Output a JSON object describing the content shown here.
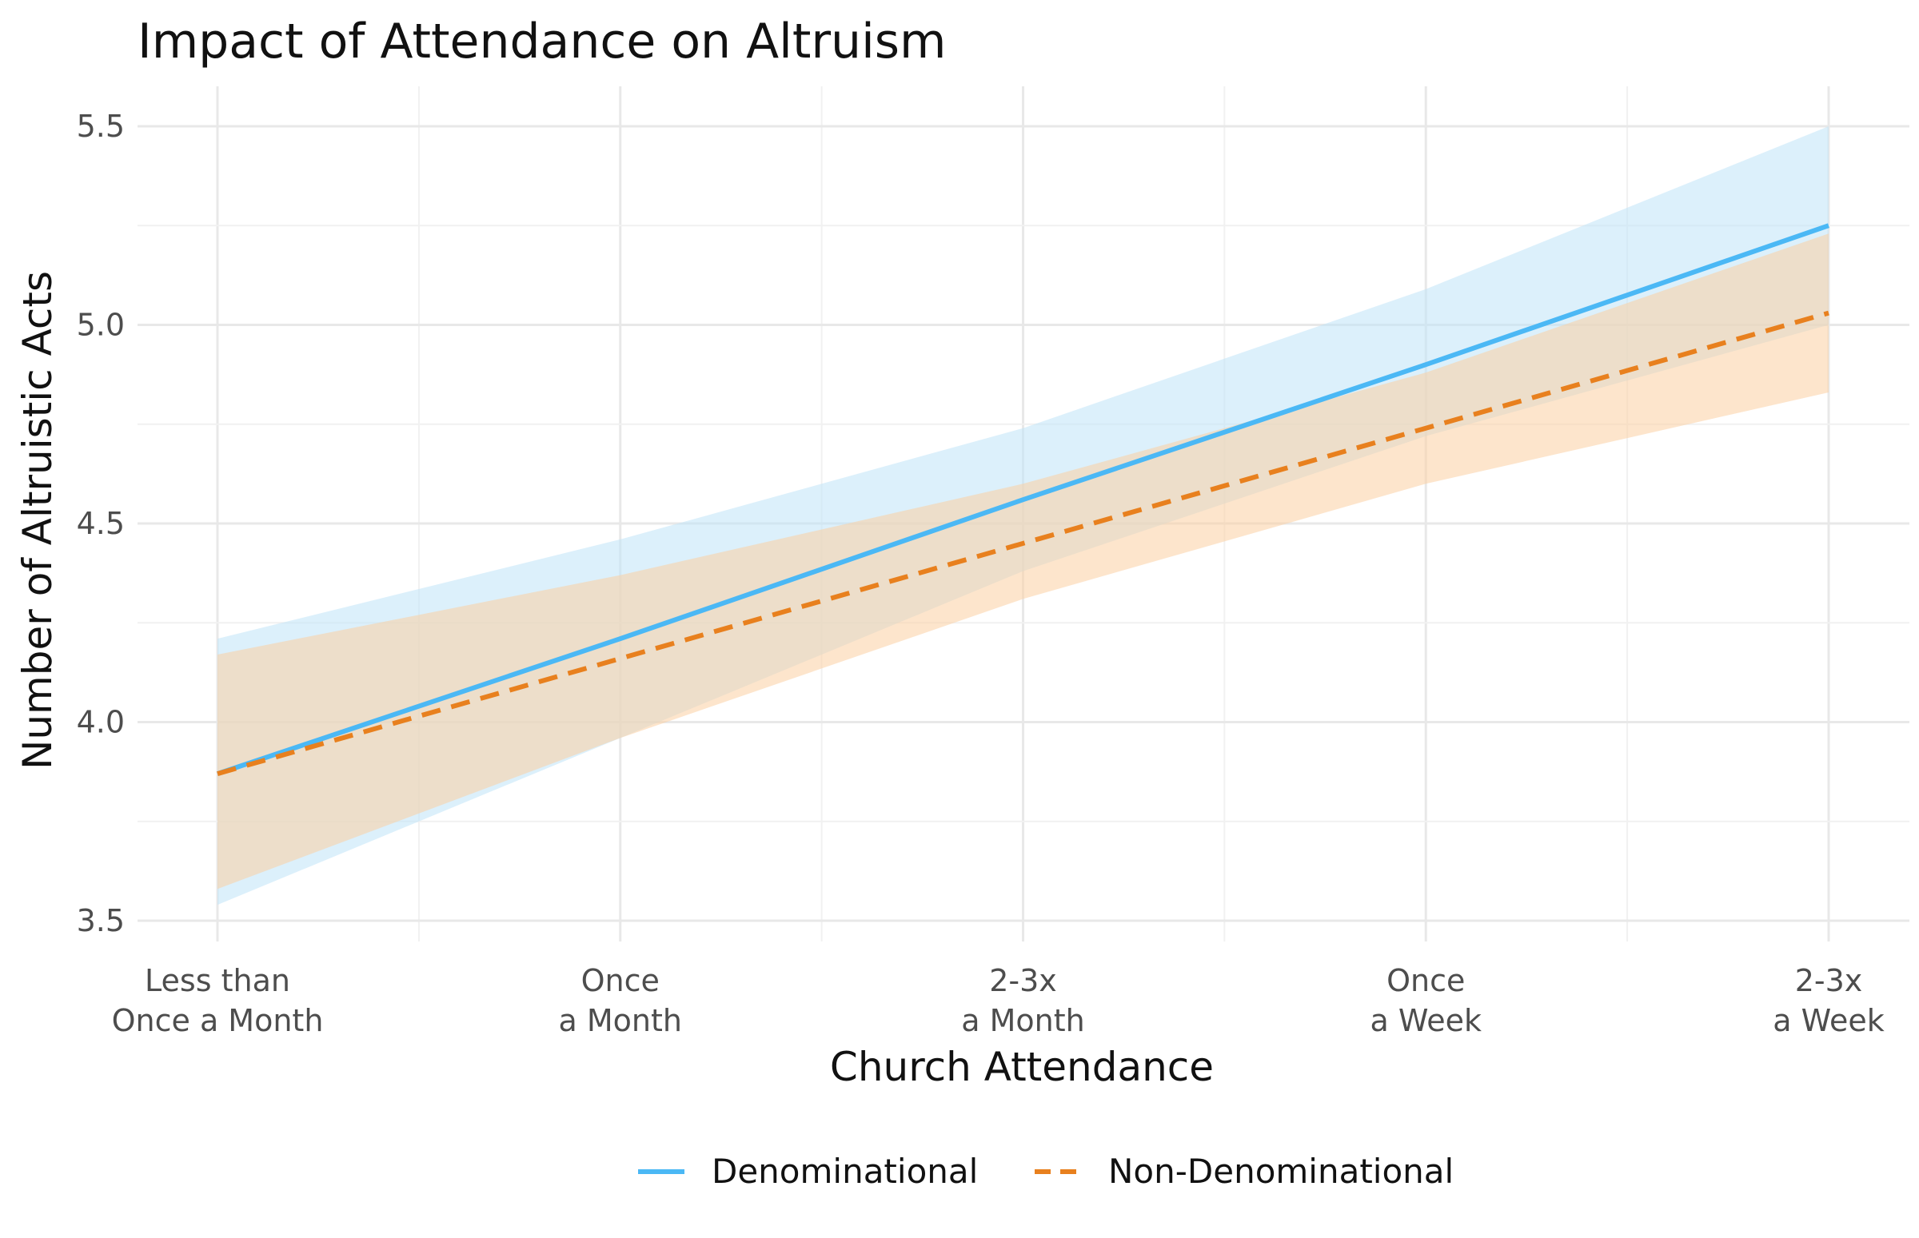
{
  "chart_data": {
    "type": "line",
    "title": "Impact of Attendance on Altruism",
    "xlabel": "Church Attendance",
    "ylabel": "Number of Altruistic Acts",
    "categories": [
      [
        "Less than",
        "Once a Month"
      ],
      [
        "Once",
        "a Month"
      ],
      [
        "2-3x",
        "a Month"
      ],
      [
        "Once",
        "a Week"
      ],
      [
        "2-3x",
        "a Week"
      ]
    ],
    "ylim": [
      3.45,
      5.6
    ],
    "yticks": [
      "3.5",
      "4.0",
      "4.5",
      "5.0",
      "5.5"
    ],
    "grid": true,
    "legend_position": "bottom",
    "series": [
      {
        "name": "Denominational",
        "color": "#4BB8F5",
        "band_color": "#BFE3F8",
        "line_style": "solid",
        "values": [
          3.87,
          4.21,
          4.56,
          4.9,
          5.25
        ],
        "lower": [
          3.54,
          3.96,
          4.38,
          4.72,
          5.0
        ],
        "upper": [
          4.21,
          4.46,
          4.74,
          5.09,
          5.5
        ]
      },
      {
        "name": "Non-Denominational",
        "color": "#E8801E",
        "band_color": "#FCCFA3",
        "line_style": "dashed",
        "values": [
          3.87,
          4.16,
          4.45,
          4.74,
          5.03
        ],
        "lower": [
          3.58,
          3.96,
          4.31,
          4.6,
          4.83
        ],
        "upper": [
          4.17,
          4.37,
          4.6,
          4.88,
          5.23
        ]
      }
    ]
  }
}
